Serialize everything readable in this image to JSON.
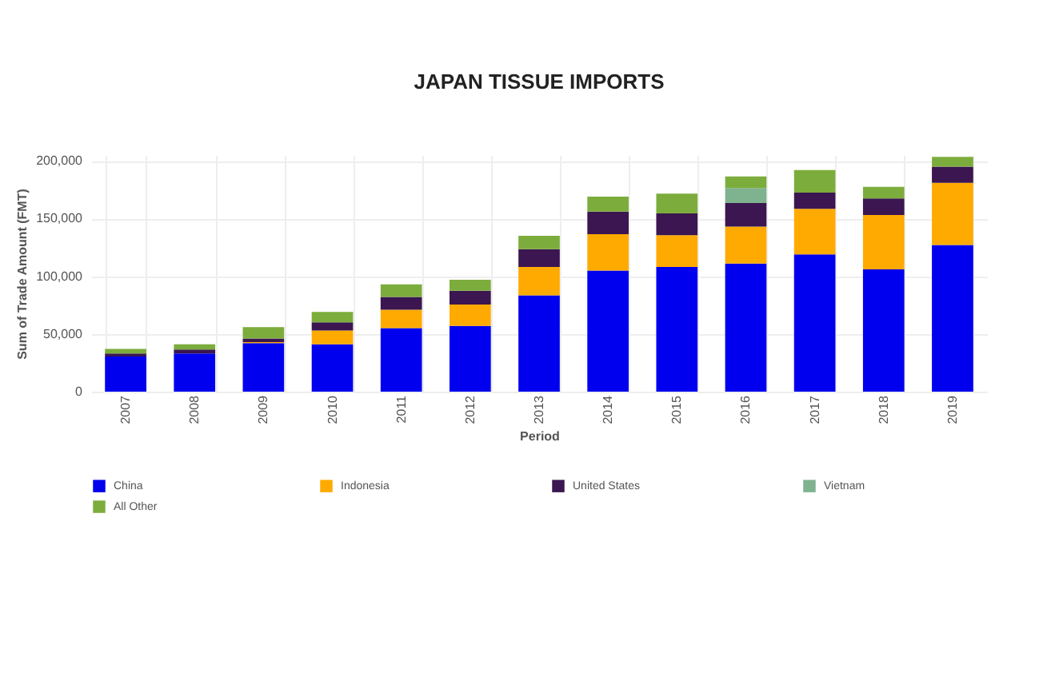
{
  "chart_data": {
    "type": "bar",
    "title": "JAPAN TISSUE IMPORTS",
    "xlabel": "Period",
    "ylabel": "Sum of Trade Amount (FMT)",
    "stacked": true,
    "categories": [
      "2007",
      "2008",
      "2009",
      "2010",
      "2011",
      "2012",
      "2013",
      "2014",
      "2015",
      "2016",
      "2017",
      "2018",
      "2019"
    ],
    "series": [
      {
        "name": "China",
        "color": "#0000ee",
        "values": [
          30500,
          33000,
          42000,
          41000,
          55000,
          57000,
          83500,
          105000,
          108000,
          111000,
          119000,
          106000,
          127000
        ]
      },
      {
        "name": "Indonesia",
        "color": "#ffaa00",
        "values": [
          0,
          0,
          1000,
          12000,
          16000,
          18500,
          24500,
          31500,
          27500,
          32000,
          39500,
          47000,
          54000
        ]
      },
      {
        "name": "United States",
        "color": "#3b1650",
        "values": [
          2500,
          3500,
          3000,
          7000,
          11000,
          12000,
          15500,
          19500,
          19000,
          20500,
          14000,
          14500,
          14000
        ]
      },
      {
        "name": "Vietnam",
        "color": "#7fb28f",
        "values": [
          0,
          0,
          0,
          0,
          0,
          0,
          0,
          0,
          0,
          13000,
          0,
          0,
          0
        ]
      },
      {
        "name": "All Other",
        "color": "#7cad3c",
        "values": [
          4000,
          4500,
          10000,
          9000,
          11000,
          9500,
          11500,
          13000,
          17000,
          10000,
          19500,
          10000,
          8500
        ]
      }
    ],
    "ylim": [
      0,
      205000
    ],
    "yticks": [
      0,
      {
        "value": 50000,
        "label": "50,000"
      },
      {
        "value": 100000,
        "label": "100,000"
      },
      {
        "value": 150000,
        "label": "150,000"
      },
      {
        "value": 200000,
        "label": "200,000"
      }
    ],
    "grid": true,
    "legend": "bottom"
  }
}
